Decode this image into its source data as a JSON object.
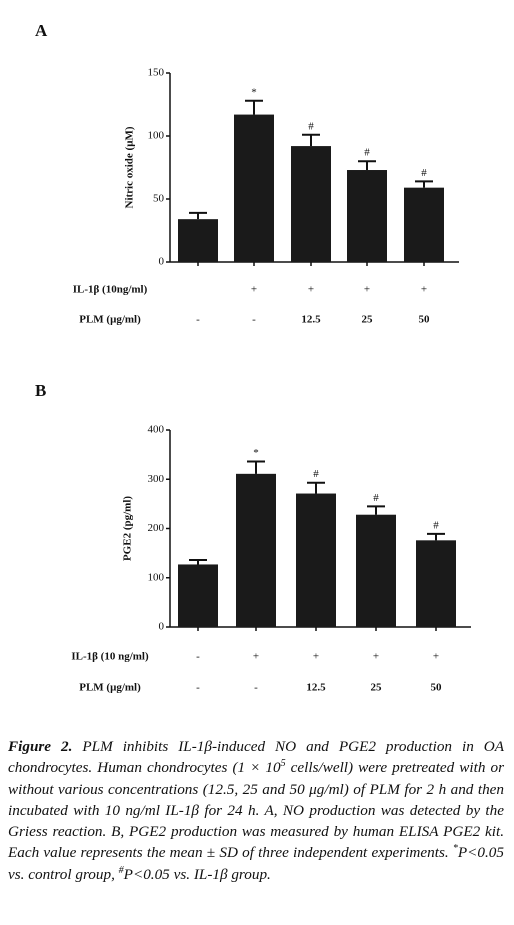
{
  "chart_data": [
    {
      "type": "bar",
      "panel": "A",
      "ylabel": "Nitric oxide (μM)",
      "color": "#1a1a1a",
      "values": [
        34,
        117,
        92,
        73,
        59
      ],
      "errors": [
        5,
        11,
        9,
        7,
        5
      ],
      "annotations": [
        null,
        "*",
        "#",
        "#",
        "#"
      ],
      "ylim": [
        0,
        150
      ],
      "yticks": [
        0,
        50,
        100,
        150
      ],
      "rows": [
        {
          "label": "IL-1β (10ng/ml)",
          "values": [
            null,
            "+",
            "+",
            "+",
            "+"
          ]
        },
        {
          "label": "PLM (μg/ml)",
          "values": [
            "-",
            "-",
            "12.5",
            "25",
            "50"
          ]
        }
      ]
    },
    {
      "type": "bar",
      "panel": "B",
      "ylabel": "PGE2 (pg/ml)",
      "color": "#1a1a1a",
      "values": [
        127,
        311,
        271,
        228,
        176
      ],
      "errors": [
        9,
        25,
        22,
        17,
        13
      ],
      "annotations": [
        null,
        "*",
        "#",
        "#",
        "#"
      ],
      "ylim": [
        0,
        400
      ],
      "yticks": [
        0,
        100,
        200,
        300,
        400
      ],
      "rows": [
        {
          "label": "IL-1β (10 ng/ml)",
          "values": [
            "-",
            "+",
            "+",
            "+",
            "+"
          ]
        },
        {
          "label": "PLM (μg/ml)",
          "values": [
            "-",
            "-",
            "12.5",
            "25",
            "50"
          ]
        }
      ]
    }
  ],
  "caption": [
    "Figure 2.",
    " PLM inhibits IL-1β-induced NO and PGE2 production in OA chondrocytes. Human chondrocytes (1 × 10",
    "5",
    " cells/well) were pretreated with or without various concentrations (12.5, 25 and 50 μg/ml) of PLM for 2 h and then incubated with 10 ng/ml IL-1β for 24 h. A, NO production was detected by the Griess reaction. B, PGE2 production was measured by human ELISA PGE2 kit. Each value represents the mean ± SD of three independent experiments. ",
    "*",
    "P<0.05 vs. control group, ",
    "#",
    "P<0.05 vs. IL-1β group."
  ]
}
